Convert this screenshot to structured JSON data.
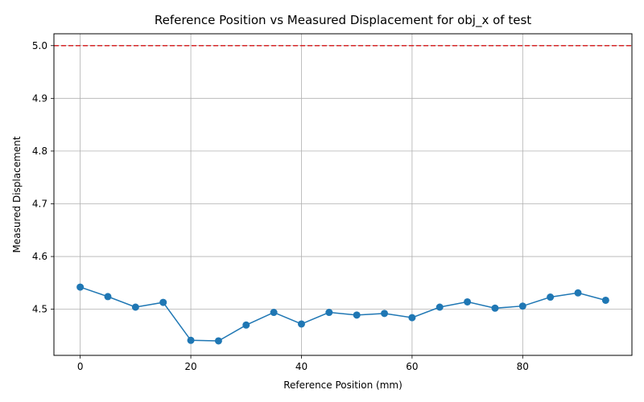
{
  "chart_data": {
    "type": "line",
    "title": "Reference Position vs Measured Displacement for obj_x of test",
    "xlabel": "Reference Position (mm)",
    "ylabel": "Measured Displacement",
    "xlim": [
      -4.75,
      99.75
    ],
    "ylim": [
      4.4125,
      5.0225
    ],
    "xticks": [
      0,
      20,
      40,
      60,
      80
    ],
    "yticks": [
      4.5,
      4.6,
      4.7,
      4.8,
      4.9,
      5.0
    ],
    "xtick_labels": [
      "0",
      "20",
      "40",
      "60",
      "80"
    ],
    "ytick_labels": [
      "4.5",
      "4.6",
      "4.7",
      "4.8",
      "4.9",
      "5.0"
    ],
    "grid": true,
    "series": [
      {
        "color": "#1f77b4",
        "marker": "circle",
        "x": [
          0,
          5,
          10,
          15,
          20,
          25,
          30,
          35,
          40,
          45,
          50,
          55,
          60,
          65,
          70,
          75,
          80,
          85,
          90,
          95
        ],
        "y": [
          4.542,
          4.524,
          4.504,
          4.513,
          4.441,
          4.44,
          4.47,
          4.494,
          4.472,
          4.494,
          4.489,
          4.492,
          4.484,
          4.504,
          4.514,
          4.502,
          4.506,
          4.523,
          4.531,
          4.517
        ]
      }
    ],
    "reference_line": {
      "y": 5.0,
      "color": "#d62728",
      "style": "dashed"
    }
  }
}
